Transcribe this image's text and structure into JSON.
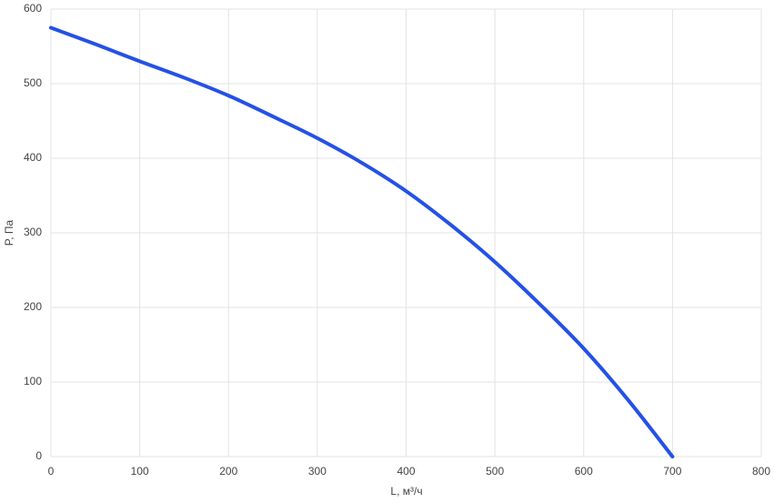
{
  "chart_data": {
    "type": "line",
    "x_label": "L, м³/ч",
    "y_label": "P, Па",
    "x": [
      0,
      50,
      100,
      150,
      200,
      250,
      300,
      350,
      400,
      450,
      500,
      550,
      600,
      650,
      700
    ],
    "series": [
      {
        "color": "#2451e6",
        "values": [
          575,
          553,
          530,
          508,
          484,
          456,
          427,
          394,
          356,
          311,
          261,
          205,
          145,
          76,
          0
        ]
      }
    ],
    "xlim": [
      0,
      800
    ],
    "xticks": [
      0,
      100,
      200,
      300,
      400,
      500,
      600,
      700,
      800
    ],
    "ylim": [
      0,
      600
    ],
    "yticks": [
      0,
      100,
      200,
      300,
      400,
      500,
      600
    ],
    "grid": true
  }
}
